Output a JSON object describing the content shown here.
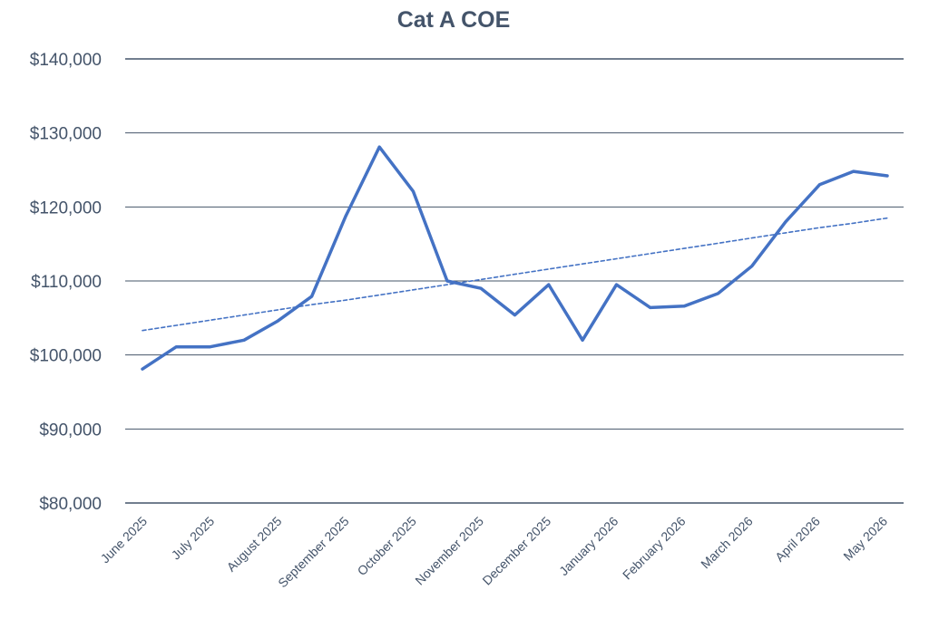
{
  "chart_data": {
    "type": "line",
    "title": "Cat A COE",
    "xlabel": "",
    "ylabel": "",
    "ylim": [
      80000,
      140000
    ],
    "y_ticks": [
      "$80,000",
      "$90,000",
      "$100,000",
      "$110,000",
      "$120,000",
      "$130,000",
      "$140,000"
    ],
    "y_tick_values": [
      80000,
      90000,
      100000,
      110000,
      120000,
      130000,
      140000
    ],
    "x_tick_labels": [
      "June 2025",
      "July 2025",
      "August 2025",
      "September 2025",
      "October 2025",
      "November 2025",
      "December 2025",
      "January 2026",
      "February 2026",
      "March 2026",
      "April 2026",
      "May 2026"
    ],
    "grid": true,
    "legend": "none",
    "series": [
      {
        "values": [
          98100,
          101100,
          101100,
          102000,
          104600,
          107900,
          118700,
          128100,
          122100,
          110000,
          109000,
          105400,
          109500,
          102000,
          109500,
          106400,
          106600,
          108300,
          112000,
          118000,
          123000,
          124800,
          124200
        ],
        "color": "#4472c4",
        "style": "solid"
      },
      {
        "values": [
          103300,
          104000,
          104700,
          105400,
          106100,
          106800,
          107400,
          108100,
          108800,
          109500,
          110200,
          110900,
          111600,
          112300,
          113000,
          113700,
          114400,
          115100,
          115800,
          116500,
          117200,
          117800,
          118500
        ],
        "color": "#4472c4",
        "style": "dashed"
      }
    ],
    "gridline_color": "#44546a",
    "text_color": "#44546a"
  }
}
